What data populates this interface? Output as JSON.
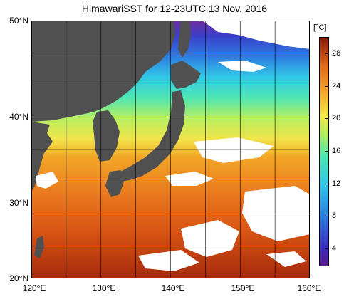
{
  "title": "HimawariSST for 12-23UTC 13 Nov. 2016",
  "lat_labels": [
    "50°N",
    "40°N",
    "30°N",
    "20°N"
  ],
  "lon_labels": [
    "120°E",
    "130°E",
    "140°E",
    "150°E",
    "160°E"
  ],
  "colorbar": {
    "unit": "[°C]",
    "ticks": [
      "28",
      "24",
      "20",
      "16",
      "12",
      "8",
      "4"
    ],
    "range": [
      2,
      30
    ]
  },
  "colors": {
    "land": "#505050",
    "missing": "#ffffff",
    "grid": "#000000"
  }
}
